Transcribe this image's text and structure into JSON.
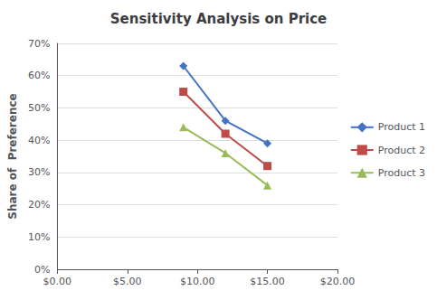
{
  "chart_data": {
    "type": "line",
    "title": "Sensitivity Analysis on Price",
    "ylabel": "Share of  Preference",
    "x": [
      9,
      12,
      15
    ],
    "series": [
      {
        "name": "Product 1",
        "color": "#4472C4",
        "marker": "diamond",
        "values": [
          0.63,
          0.46,
          0.39
        ]
      },
      {
        "name": "Product 2",
        "color": "#BE4B48",
        "marker": "square",
        "values": [
          0.55,
          0.42,
          0.32
        ]
      },
      {
        "name": "Product 3",
        "color": "#9BBB59",
        "marker": "triangle",
        "values": [
          0.44,
          0.36,
          0.26
        ]
      }
    ],
    "xlim": [
      0,
      20
    ],
    "xticks": [
      {
        "value": 0,
        "label": "$0.00"
      },
      {
        "value": 5,
        "label": "$5.00"
      },
      {
        "value": 10,
        "label": "$10.00"
      },
      {
        "value": 15,
        "label": "$15.00"
      },
      {
        "value": 20,
        "label": "$20.00"
      }
    ],
    "ylim": [
      0,
      0.7
    ],
    "yticks": [
      {
        "value": 0.0,
        "label": "0%"
      },
      {
        "value": 0.1,
        "label": "10%"
      },
      {
        "value": 0.2,
        "label": "20%"
      },
      {
        "value": 0.3,
        "label": "30%"
      },
      {
        "value": 0.4,
        "label": "40%"
      },
      {
        "value": 0.5,
        "label": "50%"
      },
      {
        "value": 0.6,
        "label": "60%"
      },
      {
        "value": 0.7,
        "label": "70%"
      }
    ],
    "grid": true,
    "legend": "right"
  }
}
